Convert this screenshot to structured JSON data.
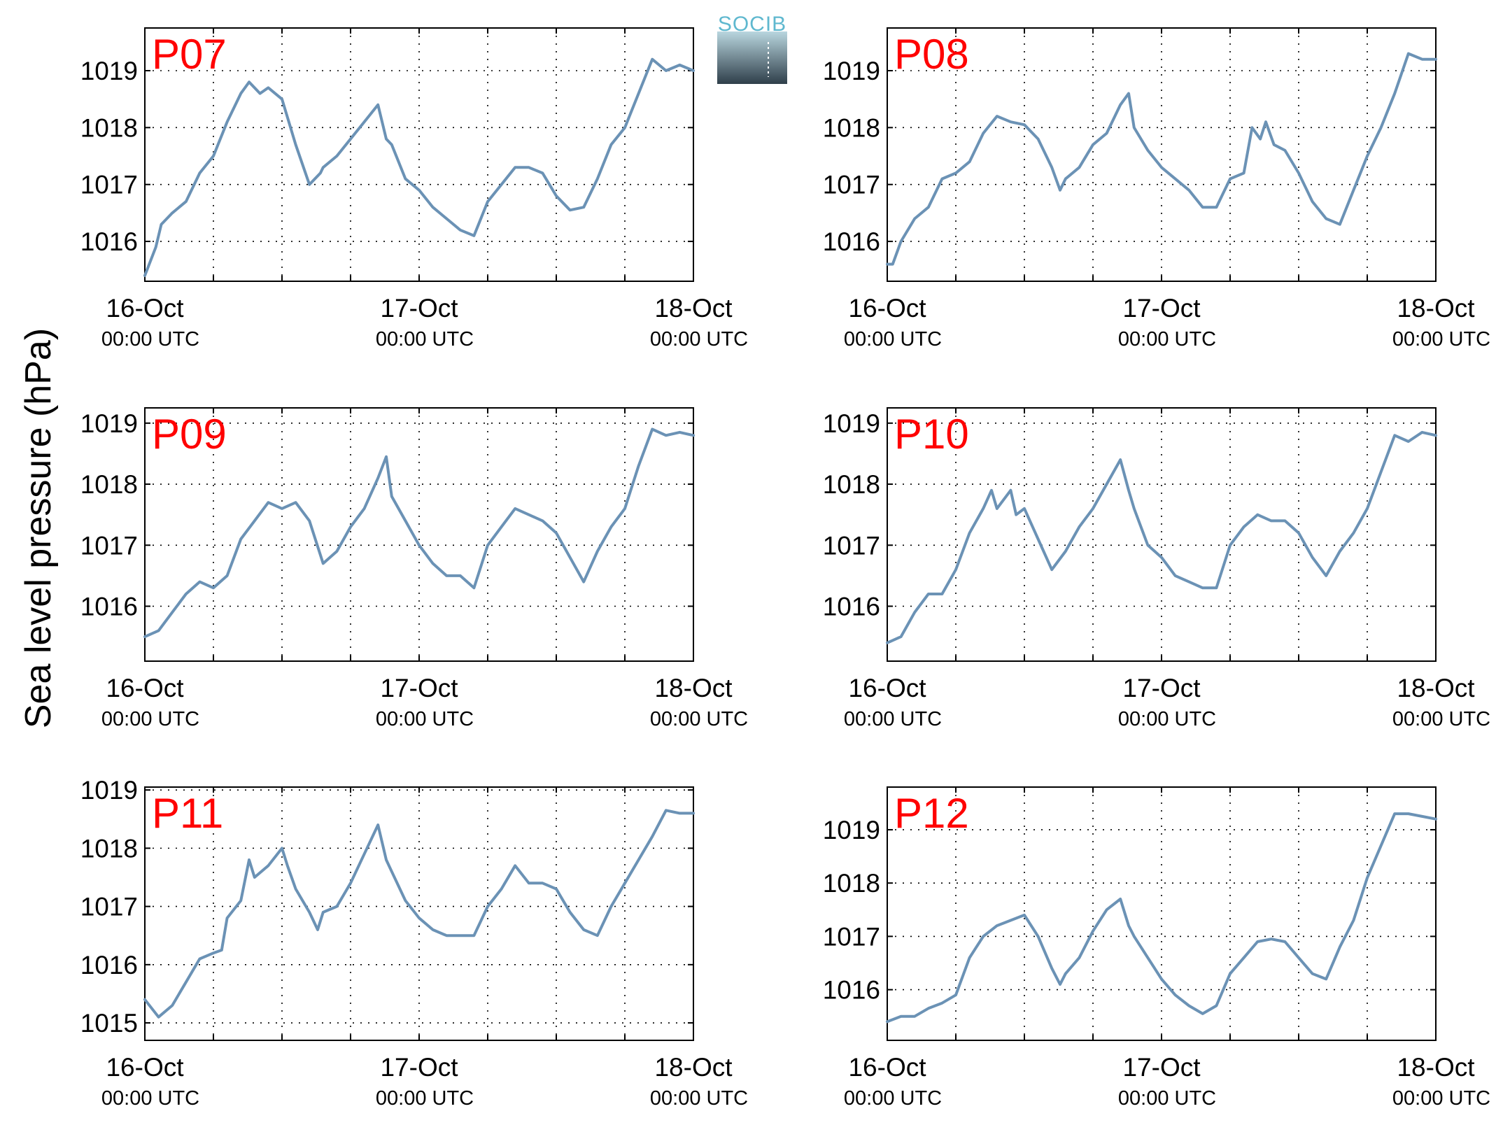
{
  "figure": {
    "ylabel": "Sea level pressure (hPa)",
    "logo": {
      "text": "SOCIB"
    },
    "colors": {
      "series": "#6b92b5",
      "panel_label": "#ff0000",
      "logo_accent": "#5fb8cf"
    }
  },
  "chart_data": [
    {
      "type": "line",
      "label": "P07",
      "ylim": [
        1015.3,
        1019.75
      ],
      "yticks": [
        1016,
        1017,
        1018,
        1019
      ],
      "xticks": [
        {
          "day": 0,
          "label": "16-Oct",
          "sub": "00:00 UTC"
        },
        {
          "day": 1,
          "label": "17-Oct",
          "sub": "00:00 UTC"
        },
        {
          "day": 2,
          "label": "18-Oct",
          "sub": "00:00 UTC"
        }
      ],
      "xlim": [
        0,
        2
      ],
      "grid": true,
      "x": [
        0,
        0.04,
        0.06,
        0.1,
        0.15,
        0.2,
        0.25,
        0.3,
        0.35,
        0.38,
        0.42,
        0.45,
        0.5,
        0.55,
        0.6,
        0.64,
        0.65,
        0.7,
        0.75,
        0.8,
        0.85,
        0.88,
        0.9,
        0.95,
        1.0,
        1.05,
        1.1,
        1.15,
        1.2,
        1.25,
        1.3,
        1.35,
        1.4,
        1.45,
        1.5,
        1.55,
        1.6,
        1.63,
        1.65,
        1.7,
        1.75,
        1.8,
        1.85,
        1.9,
        1.95,
        2.0
      ],
      "y": [
        1015.4,
        1015.9,
        1016.3,
        1016.5,
        1016.7,
        1017.2,
        1017.5,
        1018.1,
        1018.6,
        1018.8,
        1018.6,
        1018.7,
        1018.5,
        1017.7,
        1017.0,
        1017.2,
        1017.3,
        1017.5,
        1017.8,
        1018.1,
        1018.4,
        1017.8,
        1017.7,
        1017.1,
        1016.9,
        1016.6,
        1016.4,
        1016.2,
        1016.1,
        1016.7,
        1017.0,
        1017.3,
        1017.3,
        1017.2,
        1016.8,
        1016.55,
        1016.6,
        1016.9,
        1017.1,
        1017.7,
        1018.0,
        1018.6,
        1019.2,
        1019.0,
        1019.1,
        1019.0
      ]
    },
    {
      "type": "line",
      "label": "P08",
      "ylim": [
        1015.3,
        1019.75
      ],
      "yticks": [
        1016,
        1017,
        1018,
        1019
      ],
      "xticks": [
        {
          "day": 0,
          "label": "16-Oct",
          "sub": "00:00 UTC"
        },
        {
          "day": 1,
          "label": "17-Oct",
          "sub": "00:00 UTC"
        },
        {
          "day": 2,
          "label": "18-Oct",
          "sub": "00:00 UTC"
        }
      ],
      "xlim": [
        0,
        2
      ],
      "grid": true,
      "x": [
        0,
        0.02,
        0.05,
        0.1,
        0.15,
        0.2,
        0.25,
        0.3,
        0.35,
        0.4,
        0.45,
        0.5,
        0.55,
        0.6,
        0.63,
        0.65,
        0.7,
        0.75,
        0.8,
        0.85,
        0.88,
        0.9,
        0.95,
        1.0,
        1.05,
        1.1,
        1.15,
        1.2,
        1.25,
        1.3,
        1.33,
        1.36,
        1.38,
        1.41,
        1.45,
        1.5,
        1.55,
        1.6,
        1.65,
        1.7,
        1.75,
        1.8,
        1.85,
        1.9,
        1.95,
        2.0
      ],
      "y": [
        1015.6,
        1015.6,
        1016.0,
        1016.4,
        1016.6,
        1017.1,
        1017.2,
        1017.4,
        1017.9,
        1018.2,
        1018.1,
        1018.05,
        1017.8,
        1017.3,
        1016.9,
        1017.1,
        1017.3,
        1017.7,
        1017.9,
        1018.4,
        1018.6,
        1018.0,
        1017.6,
        1017.3,
        1017.1,
        1016.9,
        1016.6,
        1016.6,
        1017.1,
        1017.2,
        1018.0,
        1017.8,
        1018.1,
        1017.7,
        1017.6,
        1017.2,
        1016.7,
        1016.4,
        1016.3,
        1016.9,
        1017.5,
        1018.0,
        1018.6,
        1019.3,
        1019.2,
        1019.2
      ]
    },
    {
      "type": "line",
      "label": "P09",
      "ylim": [
        1015.1,
        1019.25
      ],
      "yticks": [
        1016,
        1017,
        1018,
        1019
      ],
      "xticks": [
        {
          "day": 0,
          "label": "16-Oct",
          "sub": "00:00 UTC"
        },
        {
          "day": 1,
          "label": "17-Oct",
          "sub": "00:00 UTC"
        },
        {
          "day": 2,
          "label": "18-Oct",
          "sub": "00:00 UTC"
        }
      ],
      "xlim": [
        0,
        2
      ],
      "grid": true,
      "x": [
        0,
        0.05,
        0.1,
        0.15,
        0.2,
        0.25,
        0.3,
        0.35,
        0.4,
        0.45,
        0.5,
        0.55,
        0.6,
        0.65,
        0.7,
        0.75,
        0.8,
        0.85,
        0.88,
        0.9,
        0.95,
        1.0,
        1.05,
        1.1,
        1.15,
        1.2,
        1.25,
        1.3,
        1.35,
        1.4,
        1.45,
        1.5,
        1.55,
        1.6,
        1.65,
        1.7,
        1.75,
        1.8,
        1.85,
        1.9,
        1.95,
        2.0
      ],
      "y": [
        1015.5,
        1015.6,
        1015.9,
        1016.2,
        1016.4,
        1016.3,
        1016.5,
        1017.1,
        1017.4,
        1017.7,
        1017.6,
        1017.7,
        1017.4,
        1016.7,
        1016.9,
        1017.3,
        1017.6,
        1018.1,
        1018.45,
        1017.8,
        1017.4,
        1017.0,
        1016.7,
        1016.5,
        1016.5,
        1016.3,
        1017.0,
        1017.3,
        1017.6,
        1017.5,
        1017.4,
        1017.2,
        1016.8,
        1016.4,
        1016.9,
        1017.3,
        1017.6,
        1018.3,
        1018.9,
        1018.8,
        1018.85,
        1018.8
      ]
    },
    {
      "type": "line",
      "label": "P10",
      "ylim": [
        1015.1,
        1019.25
      ],
      "yticks": [
        1016,
        1017,
        1018,
        1019
      ],
      "xticks": [
        {
          "day": 0,
          "label": "16-Oct",
          "sub": "00:00 UTC"
        },
        {
          "day": 1,
          "label": "17-Oct",
          "sub": "00:00 UTC"
        },
        {
          "day": 2,
          "label": "18-Oct",
          "sub": "00:00 UTC"
        }
      ],
      "xlim": [
        0,
        2
      ],
      "grid": true,
      "x": [
        0,
        0.05,
        0.1,
        0.15,
        0.2,
        0.25,
        0.3,
        0.35,
        0.38,
        0.4,
        0.45,
        0.47,
        0.5,
        0.55,
        0.6,
        0.65,
        0.7,
        0.75,
        0.8,
        0.85,
        0.88,
        0.9,
        0.95,
        1.0,
        1.05,
        1.1,
        1.15,
        1.2,
        1.25,
        1.3,
        1.35,
        1.4,
        1.45,
        1.5,
        1.55,
        1.6,
        1.65,
        1.7,
        1.75,
        1.8,
        1.85,
        1.9,
        1.95,
        2.0
      ],
      "y": [
        1015.4,
        1015.5,
        1015.9,
        1016.2,
        1016.2,
        1016.6,
        1017.2,
        1017.6,
        1017.9,
        1017.6,
        1017.9,
        1017.5,
        1017.6,
        1017.1,
        1016.6,
        1016.9,
        1017.3,
        1017.6,
        1018.0,
        1018.4,
        1017.9,
        1017.6,
        1017.0,
        1016.8,
        1016.5,
        1016.4,
        1016.3,
        1016.3,
        1017.0,
        1017.3,
        1017.5,
        1017.4,
        1017.4,
        1017.2,
        1016.8,
        1016.5,
        1016.9,
        1017.2,
        1017.6,
        1018.2,
        1018.8,
        1018.7,
        1018.85,
        1018.8
      ]
    },
    {
      "type": "line",
      "label": "P11",
      "ylim": [
        1014.7,
        1019.05
      ],
      "yticks": [
        1015,
        1016,
        1017,
        1018,
        1019
      ],
      "xticks": [
        {
          "day": 0,
          "label": "16-Oct",
          "sub": "00:00 UTC"
        },
        {
          "day": 1,
          "label": "17-Oct",
          "sub": "00:00 UTC"
        },
        {
          "day": 2,
          "label": "18-Oct",
          "sub": "00:00 UTC"
        }
      ],
      "xlim": [
        0,
        2
      ],
      "grid": true,
      "x": [
        0,
        0.05,
        0.1,
        0.15,
        0.2,
        0.25,
        0.28,
        0.3,
        0.35,
        0.38,
        0.4,
        0.45,
        0.5,
        0.52,
        0.55,
        0.6,
        0.63,
        0.65,
        0.7,
        0.75,
        0.8,
        0.85,
        0.88,
        0.9,
        0.95,
        1.0,
        1.05,
        1.1,
        1.15,
        1.2,
        1.25,
        1.3,
        1.35,
        1.4,
        1.45,
        1.5,
        1.55,
        1.6,
        1.65,
        1.7,
        1.75,
        1.8,
        1.85,
        1.9,
        1.95,
        2.0
      ],
      "y": [
        1015.4,
        1015.1,
        1015.3,
        1015.7,
        1016.1,
        1016.2,
        1016.25,
        1016.8,
        1017.1,
        1017.8,
        1017.5,
        1017.7,
        1018.0,
        1017.7,
        1017.3,
        1016.9,
        1016.6,
        1016.9,
        1017.0,
        1017.4,
        1017.9,
        1018.4,
        1017.8,
        1017.6,
        1017.1,
        1016.8,
        1016.6,
        1016.5,
        1016.5,
        1016.5,
        1017.0,
        1017.3,
        1017.7,
        1017.4,
        1017.4,
        1017.3,
        1016.9,
        1016.6,
        1016.5,
        1017.0,
        1017.4,
        1017.8,
        1018.2,
        1018.65,
        1018.6,
        1018.6
      ]
    },
    {
      "type": "line",
      "label": "P12",
      "ylim": [
        1015.05,
        1019.8
      ],
      "yticks": [
        1016,
        1017,
        1018,
        1019
      ],
      "xticks": [
        {
          "day": 0,
          "label": "16-Oct",
          "sub": "00:00 UTC"
        },
        {
          "day": 1,
          "label": "17-Oct",
          "sub": "00:00 UTC"
        },
        {
          "day": 2,
          "label": "18-Oct",
          "sub": "00:00 UTC"
        }
      ],
      "xlim": [
        0,
        2
      ],
      "grid": true,
      "x": [
        0,
        0.05,
        0.1,
        0.15,
        0.2,
        0.25,
        0.3,
        0.35,
        0.4,
        0.45,
        0.5,
        0.55,
        0.6,
        0.63,
        0.65,
        0.7,
        0.75,
        0.8,
        0.85,
        0.88,
        0.9,
        0.95,
        1.0,
        1.05,
        1.1,
        1.15,
        1.2,
        1.25,
        1.3,
        1.35,
        1.4,
        1.45,
        1.5,
        1.55,
        1.6,
        1.65,
        1.7,
        1.75,
        1.8,
        1.85,
        1.9,
        1.95,
        2.0
      ],
      "y": [
        1015.4,
        1015.5,
        1015.5,
        1015.65,
        1015.75,
        1015.9,
        1016.6,
        1017.0,
        1017.2,
        1017.3,
        1017.4,
        1017.0,
        1016.4,
        1016.1,
        1016.3,
        1016.6,
        1017.1,
        1017.5,
        1017.7,
        1017.2,
        1017.0,
        1016.6,
        1016.2,
        1015.9,
        1015.7,
        1015.55,
        1015.7,
        1016.3,
        1016.6,
        1016.9,
        1016.95,
        1016.9,
        1016.6,
        1016.3,
        1016.2,
        1016.8,
        1017.3,
        1018.1,
        1018.7,
        1019.3,
        1019.3,
        1019.25,
        1019.2
      ]
    }
  ]
}
